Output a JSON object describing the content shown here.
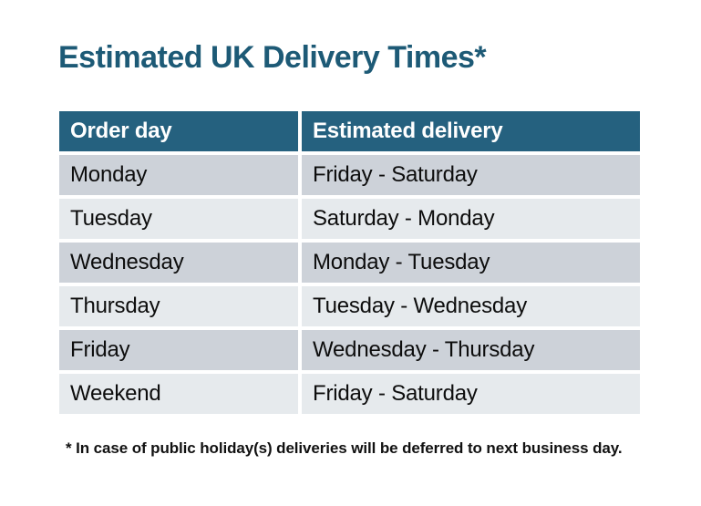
{
  "page": {
    "title": "Estimated UK Delivery Times*",
    "footnote": "* In case of public holiday(s) deliveries will be deferred to next business day."
  },
  "table": {
    "headers": [
      "Order day",
      "Estimated delivery"
    ],
    "rows": [
      {
        "order_day": "Monday",
        "estimated_delivery": "Friday - Saturday"
      },
      {
        "order_day": "Tuesday",
        "estimated_delivery": "Saturday - Monday"
      },
      {
        "order_day": "Wednesday",
        "estimated_delivery": "Monday - Tuesday"
      },
      {
        "order_day": "Thursday",
        "estimated_delivery": "Tuesday - Wednesday"
      },
      {
        "order_day": "Friday",
        "estimated_delivery": "Wednesday - Thursday"
      },
      {
        "order_day": "Weekend",
        "estimated_delivery": "Friday - Saturday"
      }
    ]
  },
  "colors": {
    "title_text": "#1d5a76",
    "header_bg": "#25617f",
    "header_text": "#ffffff",
    "row_dark_bg": "#cdd2d9",
    "row_light_bg": "#e6eaed",
    "body_text": "#0d0d0d",
    "background": "#ffffff"
  }
}
